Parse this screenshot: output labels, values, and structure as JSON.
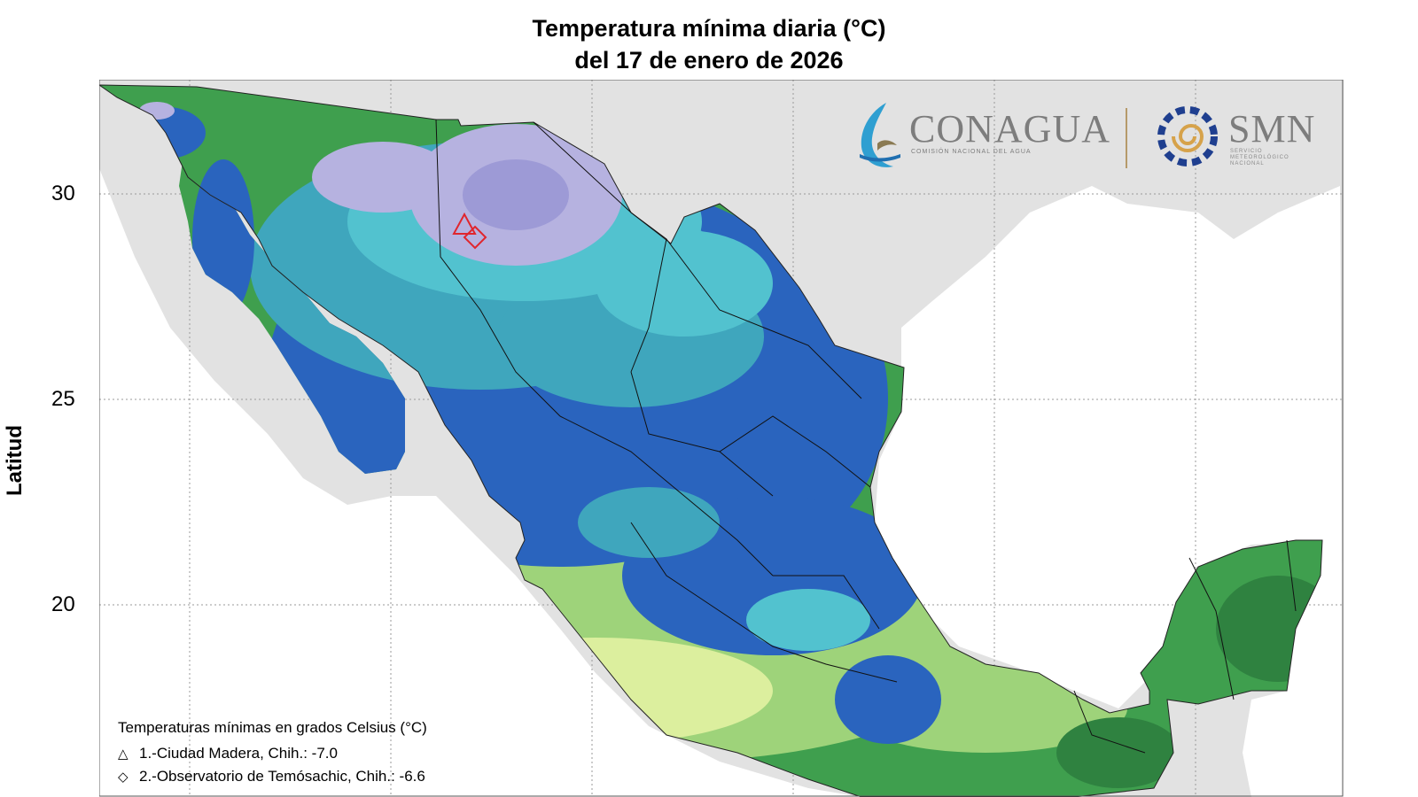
{
  "title": {
    "line1": "Temperatura mínima diaria (°C)",
    "line2": "del 17 de enero de 2026"
  },
  "axis": {
    "ylabel": "Latitud",
    "yticks": [
      "30",
      "25",
      "20"
    ]
  },
  "logos": {
    "conagua": "CONAGUA",
    "conagua_sub": "COMISIÓN NACIONAL DEL AGUA",
    "smn": "SMN",
    "smn_sub": "SERVICIO METEOROLÓGICO NACIONAL"
  },
  "legend": {
    "header": "Temperaturas mínimas en grados Celsius (°C)",
    "stations": [
      {
        "symbol": "△",
        "label": "1.-Ciudad Madera, Chih.: -7.0"
      },
      {
        "symbol": "◇",
        "label": "2.-Observatorio de Temósachic, Chih.: -6.6"
      }
    ]
  },
  "colors": {
    "land_outside": "#e2e2e2",
    "sea": "#ffffff",
    "lavender": "#b6b2e0",
    "light_purple": "#9d9ad6",
    "cyan": "#52c2cf",
    "teal": "#3fa6bd",
    "blue": "#2a64be",
    "green": "#3f9f4e",
    "dark_green": "#2f8240",
    "light_green": "#9ed37a",
    "pale_green": "#dcef9e",
    "marker": "#e0262e"
  }
}
